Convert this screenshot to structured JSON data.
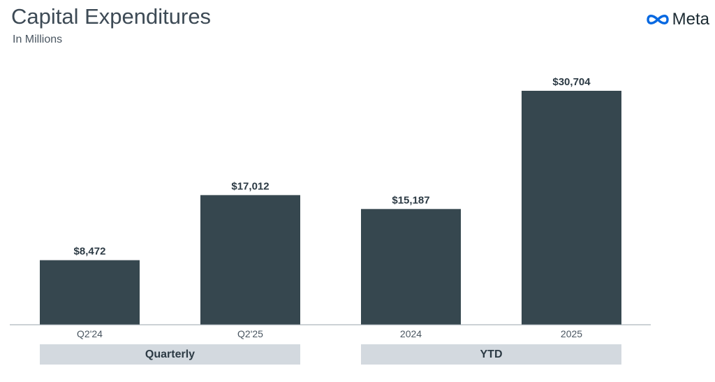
{
  "header": {
    "title": "Capital Expenditures",
    "subtitle": "In Millions"
  },
  "logo": {
    "icon": "meta-infinity-icon",
    "wordmark": "Meta",
    "color": "#0668E1"
  },
  "chart_data": {
    "type": "bar",
    "title": "Capital Expenditures",
    "subtitle": "In Millions",
    "categories": [
      "Q2'24",
      "Q2'25",
      "2024",
      "2025"
    ],
    "values": [
      8472,
      17012,
      15187,
      30704
    ],
    "value_labels": [
      "$8,472",
      "$17,012",
      "$15,187",
      "$30,704"
    ],
    "groups": [
      {
        "label": "Quarterly",
        "categories": [
          "Q2'24",
          "Q2'25"
        ]
      },
      {
        "label": "YTD",
        "categories": [
          "2024",
          "2025"
        ]
      }
    ],
    "bar_color": "#36474f",
    "xlabel": "",
    "ylabel": "",
    "ylim": [
      0,
      30704
    ],
    "grid": false,
    "legend": false
  }
}
